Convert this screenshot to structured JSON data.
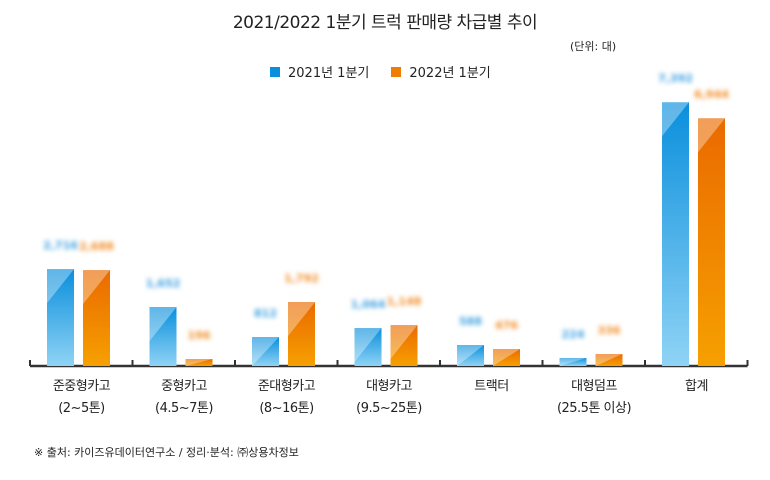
{
  "title": "2021/2022 1분기 트럭 판매량 차급별 추이",
  "unit": "(단위: 대)",
  "footnote": "※ 출처: 카이즈유데이터연구소 / 정리·분석: ㈜상용차정보",
  "colors": {
    "series_2021": "#0a8fdc",
    "series_2022": "#ef7d00"
  },
  "chart_data": {
    "type": "bar",
    "title": "2021/2022 1분기 트럭 판매량 차급별 추이",
    "ylabel": "(단위: 대)",
    "categories": [
      [
        "준중형카고",
        "(2~5톤)"
      ],
      [
        "중형카고",
        "(4.5~7톤)"
      ],
      [
        "준대형카고",
        "(8~16톤)"
      ],
      [
        "대형카고",
        "(9.5~25톤)"
      ],
      [
        "트랙터",
        ""
      ],
      [
        "대형덤프",
        "(25.5톤 이상)"
      ],
      [
        "합계",
        ""
      ]
    ],
    "series": [
      {
        "name": "2021년 1분기",
        "values": [
          2716,
          1652,
          812,
          1064,
          588,
          224,
          7392
        ]
      },
      {
        "name": "2022년 1분기",
        "values": [
          2688,
          196,
          1792,
          1148,
          476,
          336,
          6944
        ]
      }
    ],
    "ylim": [
      0,
      7400
    ],
    "grid": false,
    "legend": "top-center"
  }
}
